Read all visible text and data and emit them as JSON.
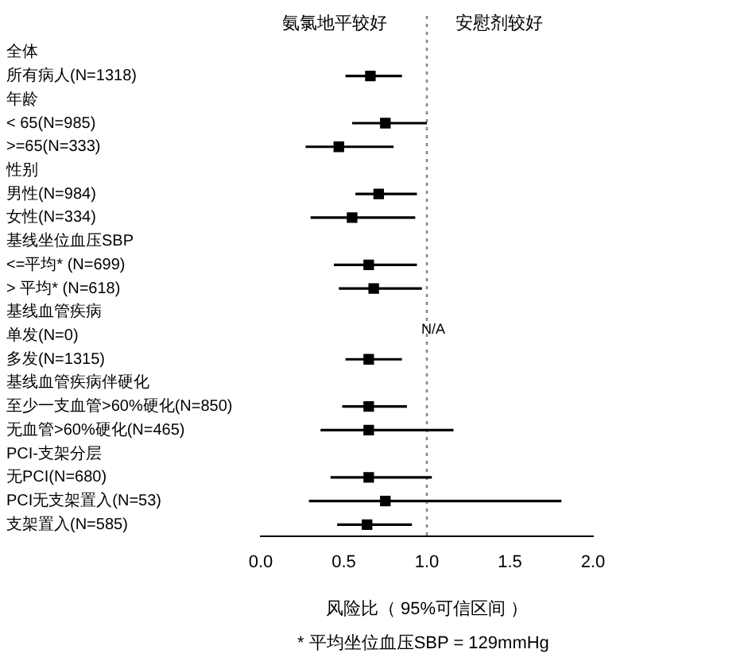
{
  "chart_data": {
    "type": "scatter",
    "orientation": "horizontal",
    "xlabel": "风险比（ 95%可信区间 ）",
    "categories": [
      "全体",
      "所有病人(N=1318)",
      "年龄",
      "< 65(N=985)",
      ">=65(N=333)",
      "性别",
      "男性(N=984)",
      "女性(N=334)",
      "基线坐位血压SBP",
      "<=平均* (N=699)",
      "> 平均* (N=618)",
      "基线血管疾病",
      "单发(N=0)",
      "多发(N=1315)",
      "基线血管疾病伴硬化",
      "至少一支血管>60%硬化(N=850)",
      "无血管>60%硬化(N=465)",
      "PCI-支架分层",
      "无PCI(N=680)",
      "PCI无支架置入(N=53)",
      "支架置入(N=585)"
    ],
    "values": [
      null,
      0.66,
      null,
      0.75,
      0.47,
      null,
      0.71,
      0.55,
      null,
      0.65,
      0.68,
      null,
      null,
      0.65,
      null,
      0.65,
      0.65,
      null,
      0.65,
      0.75,
      0.64
    ],
    "errors": [
      null,
      [
        0.51,
        0.85
      ],
      null,
      [
        0.55,
        1.0
      ],
      [
        0.27,
        0.8
      ],
      null,
      [
        0.57,
        0.94
      ],
      [
        0.3,
        0.93
      ],
      null,
      [
        0.44,
        0.94
      ],
      [
        0.47,
        0.97
      ],
      null,
      null,
      [
        0.51,
        0.85
      ],
      null,
      [
        0.49,
        0.88
      ],
      [
        0.36,
        1.16
      ],
      null,
      [
        0.42,
        1.03
      ],
      [
        0.29,
        1.81
      ],
      [
        0.46,
        0.91
      ]
    ],
    "color": "#000000",
    "marker": "square",
    "xlim": [
      0,
      2
    ],
    "xticks": [
      {
        "value": 0,
        "label": "0.0"
      },
      {
        "value": 0.5,
        "label": "0.5"
      },
      {
        "value": 1,
        "label": "1.0"
      },
      {
        "value": 1.5,
        "label": "1.5"
      },
      {
        "value": 2,
        "label": "2.0"
      }
    ],
    "ref_lines": [
      {
        "axis": "x",
        "value": 1,
        "color": "#888888",
        "line_style": "dotted"
      }
    ],
    "annotations": [
      "氨氯地平较好",
      "安慰剂较好",
      {
        "text": "N/A",
        "x": 1,
        "y": "单发(N=0)"
      },
      "* 平均坐位血压SBP = 129mmHg"
    ],
    "grid": false,
    "legend": false
  }
}
